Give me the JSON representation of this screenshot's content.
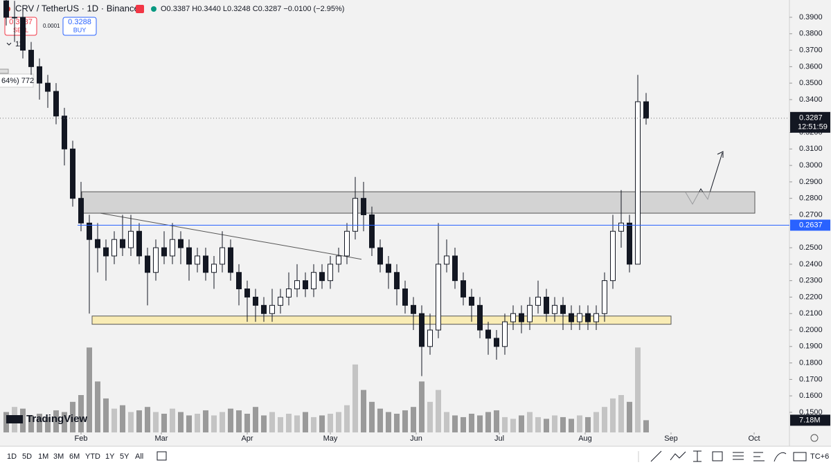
{
  "header": {
    "symbol": "CRV / TetherUS · 1D · Binance",
    "ohlc": "O0.3387 H0.3440 L0.3248 C0.3287 −0.0100 (−2.95%)",
    "sell_price": "0.3287",
    "sell": "SELL",
    "spread": "0.0001",
    "buy_price": "0.3288",
    "buy": "BUY",
    "indicator_count": "11",
    "side_note": "64%) 772"
  },
  "toolbar": {
    "ranges": [
      "1D",
      "5D",
      "1M",
      "3M",
      "6M",
      "YTD",
      "1Y",
      "5Y",
      "All"
    ],
    "logo": "TradingView",
    "timezone": "TC+6"
  },
  "chart_data": {
    "type": "candlestick",
    "x": [
      5,
      8,
      11,
      14,
      17,
      20,
      23,
      26,
      29,
      32,
      35,
      38,
      41,
      44,
      47,
      50,
      53,
      56,
      59,
      62,
      65,
      68,
      71,
      74,
      77,
      80,
      83,
      86,
      89,
      92,
      95,
      98,
      101,
      104,
      107,
      110,
      113,
      116,
      119,
      122,
      125,
      128,
      131,
      134,
      137,
      140,
      143,
      146,
      149,
      152,
      155,
      158,
      161,
      164,
      167,
      170,
      173,
      176,
      179,
      182,
      185,
      188,
      191,
      194,
      197,
      200,
      203,
      206,
      209,
      212,
      215,
      218,
      221,
      224,
      227,
      230,
      233,
      236
    ],
    "open": [
      0.4,
      0.39,
      0.39,
      0.37,
      0.36,
      0.35,
      0.345,
      0.33,
      0.31,
      0.28,
      0.265,
      0.255,
      0.25,
      0.245,
      0.255,
      0.25,
      0.26,
      0.245,
      0.235,
      0.25,
      0.245,
      0.255,
      0.25,
      0.24,
      0.245,
      0.235,
      0.24,
      0.25,
      0.235,
      0.225,
      0.22,
      0.215,
      0.21,
      0.215,
      0.22,
      0.225,
      0.23,
      0.225,
      0.235,
      0.23,
      0.24,
      0.245,
      0.26,
      0.28,
      0.27,
      0.25,
      0.24,
      0.235,
      0.225,
      0.215,
      0.21,
      0.19,
      0.2,
      0.24,
      0.245,
      0.23,
      0.22,
      0.215,
      0.2,
      0.195,
      0.19,
      0.205,
      0.21,
      0.205,
      0.215,
      0.22,
      0.21,
      0.215,
      0.21,
      0.205,
      0.21,
      0.205,
      0.21,
      0.23,
      0.26,
      0.265,
      0.24,
      0.3387
    ],
    "high": [
      0.405,
      0.4,
      0.395,
      0.375,
      0.365,
      0.355,
      0.35,
      0.335,
      0.315,
      0.29,
      0.27,
      0.265,
      0.255,
      0.26,
      0.27,
      0.27,
      0.265,
      0.25,
      0.255,
      0.26,
      0.265,
      0.26,
      0.255,
      0.25,
      0.25,
      0.245,
      0.26,
      0.255,
      0.24,
      0.23,
      0.225,
      0.22,
      0.225,
      0.225,
      0.235,
      0.24,
      0.235,
      0.24,
      0.24,
      0.245,
      0.25,
      0.265,
      0.293,
      0.29,
      0.275,
      0.255,
      0.245,
      0.24,
      0.23,
      0.22,
      0.215,
      0.21,
      0.265,
      0.255,
      0.25,
      0.235,
      0.225,
      0.22,
      0.205,
      0.2,
      0.21,
      0.215,
      0.215,
      0.22,
      0.23,
      0.225,
      0.22,
      0.22,
      0.215,
      0.215,
      0.215,
      0.215,
      0.235,
      0.27,
      0.285,
      0.27,
      0.355,
      0.344
    ],
    "low": [
      0.385,
      0.375,
      0.365,
      0.355,
      0.34,
      0.335,
      0.325,
      0.3,
      0.275,
      0.26,
      0.21,
      0.235,
      0.23,
      0.24,
      0.245,
      0.245,
      0.24,
      0.215,
      0.23,
      0.24,
      0.24,
      0.24,
      0.23,
      0.235,
      0.23,
      0.225,
      0.235,
      0.23,
      0.215,
      0.205,
      0.205,
      0.205,
      0.205,
      0.21,
      0.215,
      0.22,
      0.22,
      0.22,
      0.225,
      0.225,
      0.235,
      0.24,
      0.255,
      0.26,
      0.245,
      0.235,
      0.225,
      0.215,
      0.21,
      0.2,
      0.172,
      0.185,
      0.195,
      0.235,
      0.225,
      0.215,
      0.205,
      0.195,
      0.185,
      0.182,
      0.185,
      0.2,
      0.198,
      0.2,
      0.21,
      0.205,
      0.205,
      0.2,
      0.2,
      0.2,
      0.2,
      0.2,
      0.205,
      0.225,
      0.25,
      0.235,
      0.24,
      0.3248
    ],
    "close": [
      0.39,
      0.39,
      0.37,
      0.36,
      0.35,
      0.345,
      0.33,
      0.31,
      0.28,
      0.265,
      0.255,
      0.25,
      0.245,
      0.255,
      0.25,
      0.26,
      0.245,
      0.235,
      0.25,
      0.245,
      0.255,
      0.25,
      0.24,
      0.245,
      0.235,
      0.24,
      0.25,
      0.235,
      0.225,
      0.22,
      0.215,
      0.21,
      0.215,
      0.22,
      0.225,
      0.23,
      0.225,
      0.235,
      0.23,
      0.24,
      0.245,
      0.26,
      0.28,
      0.27,
      0.25,
      0.24,
      0.235,
      0.225,
      0.215,
      0.21,
      0.19,
      0.2,
      0.24,
      0.245,
      0.23,
      0.22,
      0.215,
      0.2,
      0.195,
      0.19,
      0.205,
      0.21,
      0.205,
      0.215,
      0.22,
      0.21,
      0.215,
      0.21,
      0.205,
      0.21,
      0.205,
      0.21,
      0.23,
      0.26,
      0.265,
      0.24,
      0.3387,
      0.3287
    ],
    "volume": [
      12,
      15,
      14,
      10,
      11,
      9,
      13,
      12,
      18,
      22,
      50,
      30,
      20,
      14,
      16,
      12,
      13,
      15,
      12,
      11,
      14,
      12,
      10,
      11,
      13,
      10,
      12,
      14,
      13,
      11,
      15,
      10,
      12,
      9,
      11,
      10,
      12,
      9,
      10,
      11,
      12,
      16,
      40,
      25,
      18,
      14,
      12,
      11,
      13,
      15,
      30,
      18,
      25,
      12,
      10,
      9,
      11,
      10,
      12,
      13,
      9,
      8,
      10,
      12,
      9,
      8,
      10,
      9,
      8,
      10,
      9,
      12,
      15,
      20,
      22,
      18,
      50,
      7.18
    ],
    "last_volume": {
      "value": 7.18,
      "label": "7.18M"
    },
    "volume_ylim": [
      0,
      55
    ],
    "up_color": "#ffffff",
    "down_color": "#131722",
    "xlim": [
      2.75,
      287.75
    ],
    "xticks": [
      {
        "value": 32,
        "label": "Feb"
      },
      {
        "value": 61,
        "label": "Mar"
      },
      {
        "value": 92,
        "label": "Apr"
      },
      {
        "value": 122,
        "label": "May"
      },
      {
        "value": 153,
        "label": "Jun"
      },
      {
        "value": 183,
        "label": "Jul"
      },
      {
        "value": 214,
        "label": "Aug"
      },
      {
        "value": 245,
        "label": "Sep"
      },
      {
        "value": 275,
        "label": "Oct"
      }
    ],
    "ylim": [
      0.1378,
      0.4005
    ],
    "yticks": [
      {
        "value": 0.15,
        "label": "0.1500"
      },
      {
        "value": 0.16,
        "label": "0.1600"
      },
      {
        "value": 0.17,
        "label": "0.1700"
      },
      {
        "value": 0.18,
        "label": "0.1800"
      },
      {
        "value": 0.19,
        "label": "0.1900"
      },
      {
        "value": 0.2,
        "label": "0.2000"
      },
      {
        "value": 0.21,
        "label": "0.2100"
      },
      {
        "value": 0.22,
        "label": "0.2200"
      },
      {
        "value": 0.23,
        "label": "0.2300"
      },
      {
        "value": 0.24,
        "label": "0.2400"
      },
      {
        "value": 0.25,
        "label": "0.2500"
      },
      {
        "value": 0.27,
        "label": "0.2700"
      },
      {
        "value": 0.28,
        "label": "0.2800"
      },
      {
        "value": 0.29,
        "label": "0.2900"
      },
      {
        "value": 0.3,
        "label": "0.3000"
      },
      {
        "value": 0.31,
        "label": "0.3100"
      },
      {
        "value": 0.32,
        "label": "0.3200"
      },
      {
        "value": 0.34,
        "label": "0.3400"
      },
      {
        "value": 0.35,
        "label": "0.3500"
      },
      {
        "value": 0.36,
        "label": "0.3600"
      },
      {
        "value": 0.37,
        "label": "0.3700"
      },
      {
        "value": 0.38,
        "label": "0.3800"
      },
      {
        "value": 0.39,
        "label": "0.3900"
      }
    ],
    "grid": false,
    "level": {
      "value": 0.2637,
      "color": "#2962ff"
    },
    "countdown": "12:51:59",
    "zones": [
      {
        "from": 32.25,
        "to": 275.25,
        "low": 0.271,
        "high": 0.284,
        "color": "#c8c8c8"
      },
      {
        "from": 36,
        "to": 245,
        "low": 0.2035,
        "high": 0.2085,
        "color": "#fbeaa0"
      }
    ],
    "trendline": {
      "x": [
        39,
        133.25
      ],
      "y": [
        0.271,
        0.243
      ]
    }
  }
}
